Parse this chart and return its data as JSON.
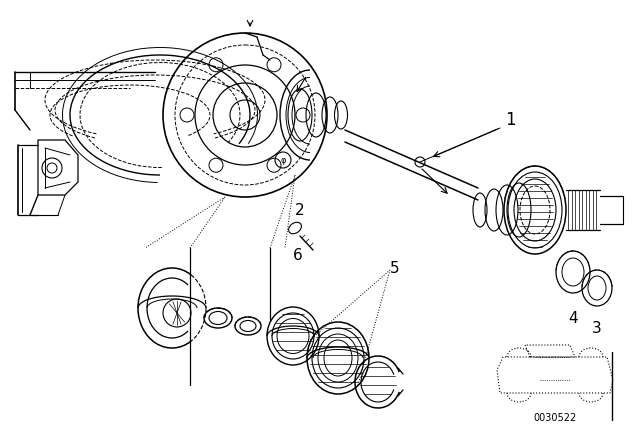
{
  "background_color": "#ffffff",
  "line_color": "#000000",
  "figure_width": 6.4,
  "figure_height": 4.48,
  "dpi": 100,
  "part_number": "0030522"
}
